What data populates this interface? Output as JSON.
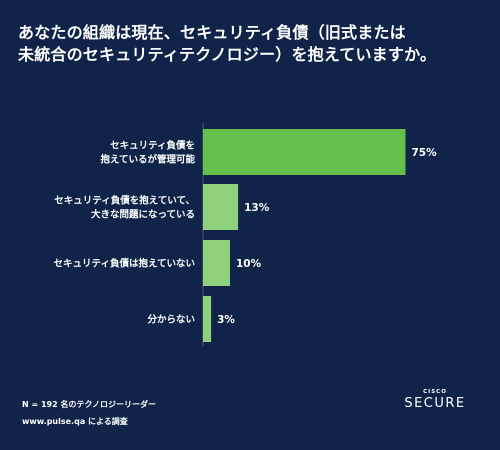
{
  "title": {
    "line1": "あなたの組織は現在、セキュリティ負債（旧式または",
    "line2": "未統合のセキュリティテクノロジー）を抱えていますか。"
  },
  "chart_data": {
    "type": "bar",
    "orientation": "horizontal",
    "categories": [
      [
        "セキュリティ負債を",
        "抱えているが管理可能"
      ],
      [
        "セキュリティ負債を抱えていて、",
        "大きな問題になっている"
      ],
      [
        "セキュリティ負債は抱えていない"
      ],
      [
        "分からない"
      ]
    ],
    "values": [
      75,
      13,
      10,
      3
    ],
    "value_labels": [
      "75%",
      "13%",
      "10%",
      "3%"
    ],
    "xlim": [
      0,
      100
    ],
    "grid": false,
    "colors": {
      "primary": "#64c04b",
      "secondary": "#8fd17a"
    }
  },
  "footnotes": {
    "sample": "N = 192 名のテクノロジーリーダー",
    "source": "www.pulse.qa による調査"
  },
  "brand": {
    "mark": "CISCO",
    "name": "SECURE"
  }
}
